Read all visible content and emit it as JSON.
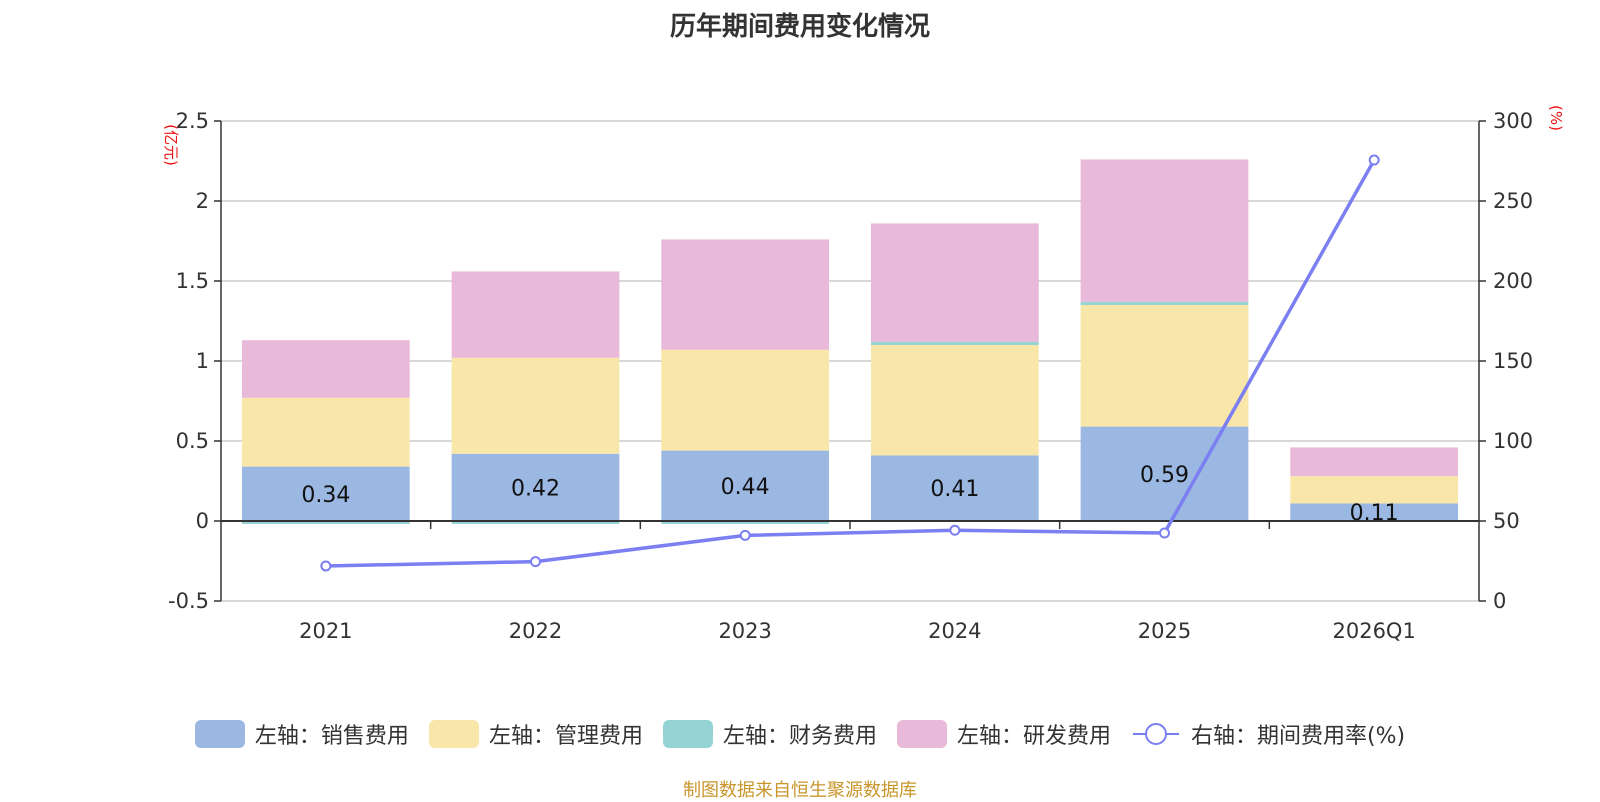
{
  "title": "历年期间费用变化情况",
  "footer": {
    "text": "制图数据来自恒生聚源数据库",
    "color": "#C8962B"
  },
  "legend": [
    {
      "label": "左轴：销售费用",
      "type": "swatch",
      "color": "#9BB8E2"
    },
    {
      "label": "左轴：管理费用",
      "type": "swatch",
      "color": "#F8E7A9"
    },
    {
      "label": "左轴：财务费用",
      "type": "swatch",
      "color": "#96D3D4"
    },
    {
      "label": "左轴：研发费用",
      "type": "swatch",
      "color": "#E8B9D9"
    },
    {
      "label": "右轴：期间费用率(%)",
      "type": "line",
      "color": "#7B7FF2"
    }
  ],
  "chart_data": {
    "type": "bar",
    "title": "历年期间费用变化情况",
    "categories": [
      "2021",
      "2022",
      "2023",
      "2024",
      "2025",
      "2026Q1"
    ],
    "stacked": true,
    "left_axis": {
      "label": "(亿元)",
      "ylim": [
        -0.5,
        2.5
      ],
      "ticks": [
        "-0.5",
        "0",
        "0.5",
        "1",
        "1.5",
        "2",
        "2.5"
      ],
      "tick_values": [
        -0.5,
        0,
        0.5,
        1,
        1.5,
        2,
        2.5
      ]
    },
    "right_axis": {
      "label": "(%)",
      "ylim": [
        0,
        300
      ],
      "ticks": [
        "0",
        "50",
        "100",
        "150",
        "200",
        "250",
        "300"
      ],
      "tick_values": [
        0,
        50,
        100,
        150,
        200,
        250,
        300
      ]
    },
    "grid": true,
    "legend_position": "bottom",
    "series": [
      {
        "name": "左轴：销售费用",
        "axis": "left",
        "type": "bar",
        "color": "#9BB8E2",
        "values": [
          0.34,
          0.42,
          0.44,
          0.41,
          0.59,
          0.11
        ],
        "labels": [
          "0.34",
          "0.42",
          "0.44",
          "0.41",
          "0.59",
          "0.11"
        ]
      },
      {
        "name": "左轴：管理费用",
        "axis": "left",
        "type": "bar",
        "color": "#F8E7A9",
        "values": [
          0.43,
          0.6,
          0.63,
          0.69,
          0.76,
          0.17
        ]
      },
      {
        "name": "左轴：财务费用",
        "axis": "left",
        "type": "bar",
        "color": "#96D3D4",
        "values": [
          -0.01,
          -0.01,
          -0.005,
          0.02,
          0.02,
          0.0
        ]
      },
      {
        "name": "左轴：研发费用",
        "axis": "left",
        "type": "bar",
        "color": "#E8B9D9",
        "values": [
          0.36,
          0.54,
          0.69,
          0.74,
          0.89,
          0.18
        ]
      },
      {
        "name": "右轴：期间费用率(%)",
        "axis": "right",
        "type": "line",
        "color": "#7B7FF2",
        "values": [
          21.9,
          24.6,
          41.0,
          44.2,
          42.5,
          275.6
        ]
      }
    ]
  }
}
